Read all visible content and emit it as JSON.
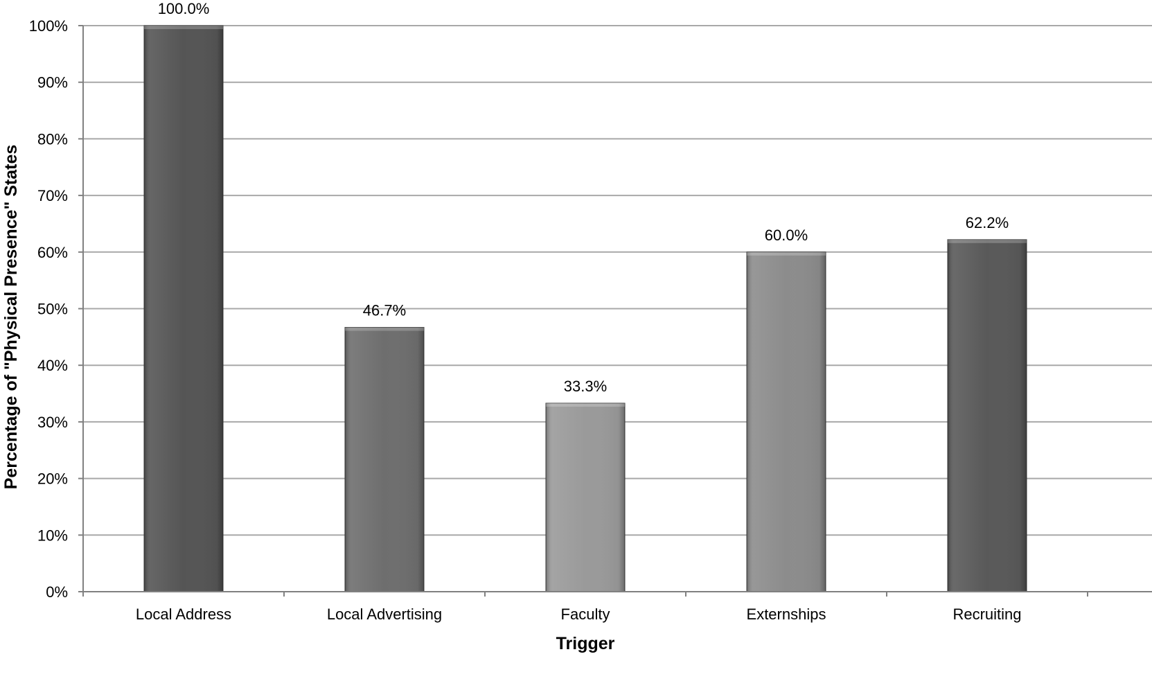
{
  "chart_data": {
    "type": "bar",
    "title": "",
    "xlabel": "Trigger",
    "ylabel": "Percentage of  \"Physical Presence\" States",
    "categories": [
      "Local Address",
      "Local Advertising",
      "Faculty",
      "Externships",
      "Recruiting"
    ],
    "values": [
      100.0,
      46.7,
      33.3,
      60.0,
      62.2
    ],
    "data_labels": [
      "100.0%",
      "46.7%",
      "33.3%",
      "60.0%",
      "62.2%"
    ],
    "bar_colors": [
      "#555555",
      "#6e6e6e",
      "#9a9a9a",
      "#8c8c8c",
      "#595959"
    ],
    "ylim": [
      0,
      100
    ],
    "yticks": [
      0,
      10,
      20,
      30,
      40,
      50,
      60,
      70,
      80,
      90,
      100
    ],
    "ytick_labels": [
      "0%",
      "10%",
      "20%",
      "30%",
      "40%",
      "50%",
      "60%",
      "70%",
      "80%",
      "90%",
      "100%"
    ],
    "grid": true,
    "legend": "none"
  }
}
